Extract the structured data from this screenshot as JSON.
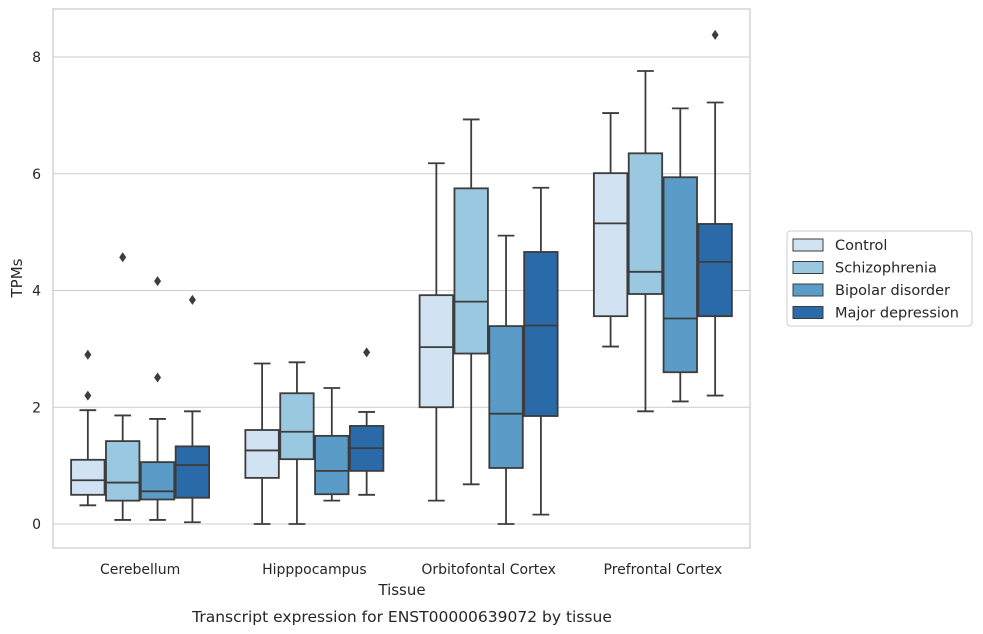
{
  "chart_data": {
    "type": "box",
    "title": "",
    "caption": "Transcript expression for ENST00000639072 by tissue",
    "xlabel": "Tissue",
    "ylabel": "TPMs",
    "ylim": [
      -0.4,
      8.8
    ],
    "yticks": [
      0,
      2,
      4,
      6,
      8
    ],
    "grid": "horizontal",
    "legend_position": "right",
    "categories": [
      "Cerebellum",
      "Hipppocampus",
      "Orbitofontal Cortex",
      "Prefrontal Cortex"
    ],
    "series": [
      {
        "name": "Control",
        "color": "#d1e2f2",
        "boxes": [
          {
            "whislo": 0.32,
            "q1": 0.5,
            "med": 0.75,
            "q3": 1.1,
            "whishi": 1.95,
            "fliers": [
              2.2,
              2.9
            ]
          },
          {
            "whislo": 0.0,
            "q1": 0.79,
            "med": 1.26,
            "q3": 1.61,
            "whishi": 2.75,
            "fliers": []
          },
          {
            "whislo": 0.4,
            "q1": 2.0,
            "med": 3.03,
            "q3": 3.92,
            "whishi": 6.18,
            "fliers": []
          },
          {
            "whislo": 3.04,
            "q1": 3.56,
            "med": 5.15,
            "q3": 6.01,
            "whishi": 7.04,
            "fliers": []
          }
        ]
      },
      {
        "name": "Schizophrenia",
        "color": "#9ac8e0",
        "boxes": [
          {
            "whislo": 0.07,
            "q1": 0.4,
            "med": 0.71,
            "q3": 1.42,
            "whishi": 1.86,
            "fliers": [
              4.57
            ]
          },
          {
            "whislo": 0.0,
            "q1": 1.11,
            "med": 1.58,
            "q3": 2.24,
            "whishi": 2.77,
            "fliers": []
          },
          {
            "whislo": 0.68,
            "q1": 2.92,
            "med": 3.81,
            "q3": 5.75,
            "whishi": 6.93,
            "fliers": []
          },
          {
            "whislo": 1.93,
            "q1": 3.94,
            "med": 4.32,
            "q3": 6.35,
            "whishi": 7.76,
            "fliers": []
          }
        ]
      },
      {
        "name": "Bipolar disorder",
        "color": "#5a9bc8",
        "boxes": [
          {
            "whislo": 0.07,
            "q1": 0.42,
            "med": 0.56,
            "q3": 1.06,
            "whishi": 1.8,
            "fliers": [
              2.51,
              4.16
            ]
          },
          {
            "whislo": 0.4,
            "q1": 0.51,
            "med": 0.91,
            "q3": 1.51,
            "whishi": 2.33,
            "fliers": []
          },
          {
            "whislo": 0.0,
            "q1": 0.96,
            "med": 1.89,
            "q3": 3.39,
            "whishi": 4.94,
            "fliers": []
          },
          {
            "whislo": 2.1,
            "q1": 2.6,
            "med": 3.52,
            "q3": 5.94,
            "whishi": 7.12,
            "fliers": []
          }
        ]
      },
      {
        "name": "Major depression",
        "color": "#2a6aa8",
        "boxes": [
          {
            "whislo": 0.03,
            "q1": 0.45,
            "med": 1.01,
            "q3": 1.33,
            "whishi": 1.93,
            "fliers": [
              3.84
            ]
          },
          {
            "whislo": 0.5,
            "q1": 0.91,
            "med": 1.3,
            "q3": 1.68,
            "whishi": 1.92,
            "fliers": [
              2.94
            ]
          },
          {
            "whislo": 0.16,
            "q1": 1.85,
            "med": 3.4,
            "q3": 4.66,
            "whishi": 5.76,
            "fliers": []
          },
          {
            "whislo": 2.2,
            "q1": 3.56,
            "med": 4.49,
            "q3": 5.14,
            "whishi": 7.22,
            "fliers": [
              8.38
            ]
          }
        ]
      }
    ]
  }
}
